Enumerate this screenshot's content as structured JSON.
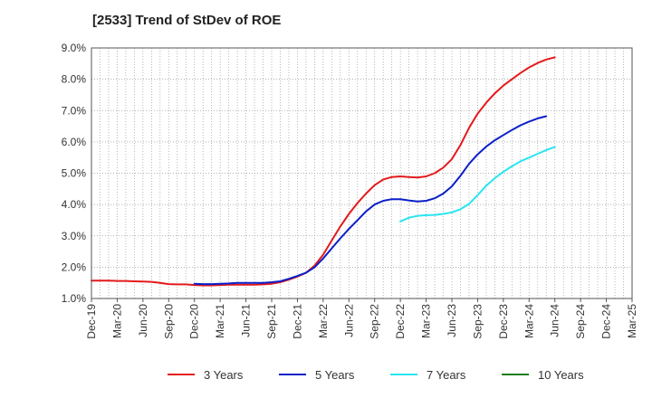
{
  "chart_data": {
    "type": "line",
    "title": "[2533]  Trend of StDev of ROE",
    "xlabel": "",
    "ylabel": "",
    "x_tick_labels": [
      "Dec-19",
      "Mar-20",
      "Jun-20",
      "Sep-20",
      "Dec-20",
      "Mar-21",
      "Jun-21",
      "Sep-21",
      "Dec-21",
      "Mar-22",
      "Jun-22",
      "Sep-22",
      "Dec-22",
      "Mar-23",
      "Jun-23",
      "Sep-23",
      "Dec-23",
      "Mar-24",
      "Jun-24",
      "Sep-24",
      "Dec-24",
      "Mar-25"
    ],
    "y_tick_labels": [
      "1.0%",
      "2.0%",
      "3.0%",
      "4.0%",
      "5.0%",
      "6.0%",
      "7.0%",
      "8.0%",
      "9.0%"
    ],
    "ylim": [
      1.0,
      9.0
    ],
    "grid": true,
    "legend_position": "bottom",
    "series": [
      {
        "name": "3 Years",
        "color": "#e31a1c",
        "start_index": 0,
        "values": [
          1.57,
          1.57,
          1.57,
          1.56,
          1.56,
          1.55,
          1.54,
          1.53,
          1.5,
          1.46,
          1.45,
          1.45,
          1.43,
          1.42,
          1.42,
          1.43,
          1.44,
          1.44,
          1.44,
          1.44,
          1.45,
          1.47,
          1.52,
          1.6,
          1.7,
          1.82,
          2.05,
          2.4,
          2.85,
          3.3,
          3.7,
          4.05,
          4.35,
          4.62,
          4.8,
          4.88,
          4.9,
          4.88,
          4.86,
          4.9,
          5.0,
          5.18,
          5.45,
          5.9,
          6.45,
          6.9,
          7.25,
          7.55,
          7.8,
          8.0,
          8.2,
          8.38,
          8.52,
          8.63,
          8.7
        ]
      },
      {
        "name": "5 Years",
        "color": "#0b1fc8",
        "start_index": 12,
        "values": [
          1.47,
          1.46,
          1.46,
          1.47,
          1.48,
          1.5,
          1.5,
          1.5,
          1.5,
          1.52,
          1.55,
          1.63,
          1.72,
          1.82,
          2.0,
          2.28,
          2.6,
          2.92,
          3.22,
          3.5,
          3.78,
          4.0,
          4.12,
          4.17,
          4.17,
          4.13,
          4.1,
          4.12,
          4.2,
          4.35,
          4.58,
          4.92,
          5.3,
          5.6,
          5.85,
          6.05,
          6.22,
          6.38,
          6.53,
          6.65,
          6.75,
          6.82
        ]
      },
      {
        "name": "7 Years",
        "color": "#29e5f0",
        "start_index": 36,
        "values": [
          3.46,
          3.58,
          3.64,
          3.66,
          3.67,
          3.7,
          3.75,
          3.85,
          4.02,
          4.3,
          4.6,
          4.84,
          5.05,
          5.22,
          5.38,
          5.5,
          5.62,
          5.74,
          5.84
        ]
      },
      {
        "name": "10 Years",
        "color": "#1a7f1a",
        "start_index": 0,
        "values": []
      }
    ]
  }
}
